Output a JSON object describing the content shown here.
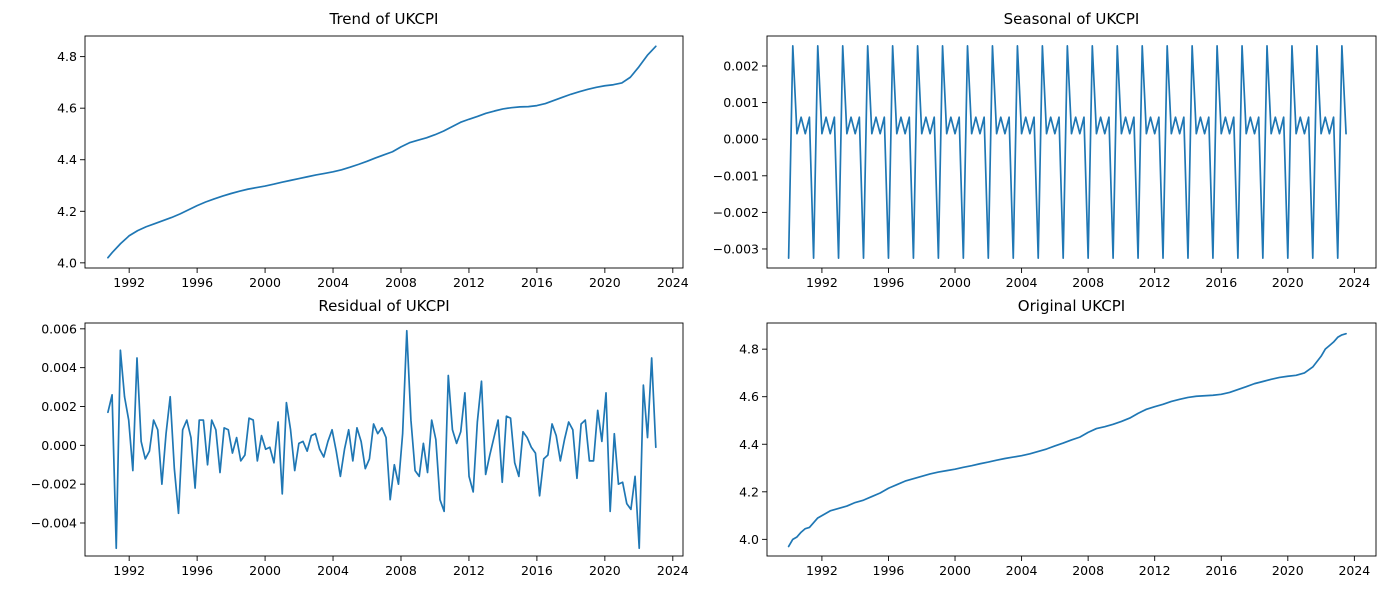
{
  "colors": {
    "line": "#1f77b4",
    "frame": "#000000",
    "background": "#ffffff"
  },
  "chart_data": [
    {
      "id": "trend",
      "type": "line",
      "title": "Trend of UKCPI",
      "xlabel": "",
      "ylabel": "",
      "xlim": [
        1989.4,
        2024.6
      ],
      "ylim": [
        3.98,
        4.88
      ],
      "xticks": [
        1992,
        1996,
        2000,
        2004,
        2008,
        2012,
        2016,
        2020,
        2024
      ],
      "yticks": [
        4.0,
        4.2,
        4.4,
        4.6,
        4.8
      ],
      "ytick_decimals": 1,
      "grid": false,
      "x": [
        1990.75,
        1991.0,
        1991.5,
        1992.0,
        1992.5,
        1993.0,
        1993.5,
        1994.0,
        1994.5,
        1995.0,
        1995.5,
        1996.0,
        1996.5,
        1997.0,
        1997.5,
        1998.0,
        1998.5,
        1999.0,
        1999.5,
        2000.0,
        2000.5,
        2001.0,
        2001.5,
        2002.0,
        2002.5,
        2003.0,
        2003.5,
        2004.0,
        2004.5,
        2005.0,
        2005.5,
        2006.0,
        2006.5,
        2007.0,
        2007.5,
        2008.0,
        2008.5,
        2009.0,
        2009.5,
        2010.0,
        2010.5,
        2011.0,
        2011.5,
        2012.0,
        2012.5,
        2013.0,
        2013.5,
        2014.0,
        2014.5,
        2015.0,
        2015.5,
        2016.0,
        2016.5,
        2017.0,
        2017.5,
        2018.0,
        2018.5,
        2019.0,
        2019.5,
        2020.0,
        2020.5,
        2021.0,
        2021.5,
        2022.0,
        2022.5,
        2023.0
      ],
      "y": [
        4.02,
        4.04,
        4.075,
        4.105,
        4.125,
        4.14,
        4.152,
        4.164,
        4.176,
        4.19,
        4.206,
        4.222,
        4.236,
        4.248,
        4.259,
        4.269,
        4.278,
        4.286,
        4.292,
        4.298,
        4.305,
        4.313,
        4.32,
        4.327,
        4.334,
        4.341,
        4.347,
        4.353,
        4.361,
        4.371,
        4.382,
        4.394,
        4.407,
        4.419,
        4.431,
        4.45,
        4.466,
        4.476,
        4.485,
        4.497,
        4.511,
        4.528,
        4.545,
        4.557,
        4.568,
        4.58,
        4.589,
        4.597,
        4.602,
        4.605,
        4.606,
        4.61,
        4.618,
        4.63,
        4.642,
        4.654,
        4.664,
        4.673,
        4.681,
        4.687,
        4.691,
        4.698,
        4.72,
        4.76,
        4.805,
        4.84
      ]
    },
    {
      "id": "seasonal",
      "type": "line",
      "title": "Seasonal of UKCPI",
      "xlabel": "",
      "ylabel": "",
      "xlim": [
        1988.7,
        2025.3
      ],
      "ylim": [
        -0.00352,
        0.00282
      ],
      "xticks": [
        1992,
        1996,
        2000,
        2004,
        2008,
        2012,
        2016,
        2020,
        2024
      ],
      "yticks": [
        -0.003,
        -0.002,
        -0.001,
        0.0,
        0.001,
        0.002
      ],
      "ytick_decimals": 3,
      "grid": false,
      "start_year": 1990.0,
      "end_year": 2023.5,
      "period_values": [
        -0.00325,
        0.00255,
        0.00015,
        0.0006,
        0.00015,
        0.0006
      ]
    },
    {
      "id": "residual",
      "type": "line",
      "title": "Residual of UKCPI",
      "xlabel": "",
      "ylabel": "",
      "xlim": [
        1989.4,
        2024.6
      ],
      "ylim": [
        -0.0057,
        0.0063
      ],
      "xticks": [
        1992,
        1996,
        2000,
        2004,
        2008,
        2012,
        2016,
        2020,
        2024
      ],
      "yticks": [
        -0.004,
        -0.002,
        0.0,
        0.002,
        0.004,
        0.006
      ],
      "ytick_decimals": 3,
      "grid": false,
      "start_year": 1990.75,
      "end_year": 2023.0,
      "y": [
        0.0017,
        0.0026,
        -0.0053,
        0.0049,
        0.0025,
        0.0013,
        -0.0013,
        0.0045,
        0.0002,
        -0.0007,
        -0.0003,
        0.0013,
        0.0008,
        -0.002,
        0.0006,
        0.0025,
        -0.0012,
        -0.0035,
        0.0008,
        0.0013,
        0.0004,
        -0.0022,
        0.0013,
        0.0013,
        -0.001,
        0.0013,
        0.0008,
        -0.0014,
        0.0009,
        0.0008,
        -0.0004,
        0.0004,
        -0.0008,
        -0.0005,
        0.0014,
        0.0013,
        -0.0008,
        0.0005,
        -0.0002,
        -0.0001,
        -0.0009,
        0.0012,
        -0.0025,
        0.0022,
        0.0008,
        -0.0013,
        0.0001,
        0.0002,
        -0.0003,
        0.0005,
        0.0006,
        -0.0002,
        -0.0006,
        0.0002,
        0.0008,
        -0.0003,
        -0.0016,
        -0.0002,
        0.0008,
        -0.0008,
        0.0009,
        0.0002,
        -0.0012,
        -0.0007,
        0.0011,
        0.0006,
        0.0009,
        0.0004,
        -0.0028,
        -0.001,
        -0.002,
        0.0006,
        0.0059,
        0.0013,
        -0.0013,
        -0.0016,
        0.0001,
        -0.0014,
        0.0013,
        0.0003,
        -0.0028,
        -0.0034,
        0.0036,
        0.0008,
        0.0001,
        0.0007,
        0.0027,
        -0.0016,
        -0.0024,
        0.0012,
        0.0033,
        -0.0015,
        -0.0005,
        0.0004,
        0.0013,
        -0.0019,
        0.0015,
        0.0014,
        -0.0009,
        -0.0016,
        0.0007,
        0.0004,
        -0.0001,
        -0.0004,
        -0.0026,
        -0.0007,
        -0.0005,
        0.0011,
        0.0005,
        -0.0008,
        0.0003,
        0.0012,
        0.0008,
        -0.0017,
        0.0011,
        0.0013,
        -0.0008,
        -0.0008,
        0.0018,
        0.0002,
        0.0027,
        -0.0034,
        0.0006,
        -0.002,
        -0.0019,
        -0.003,
        -0.0033,
        -0.0016,
        -0.0053,
        0.0031,
        0.0004,
        0.0045,
        -0.0001
      ]
    },
    {
      "id": "original",
      "type": "line",
      "title": "Original UKCPI",
      "xlabel": "",
      "ylabel": "",
      "xlim": [
        1988.7,
        2025.3
      ],
      "ylim": [
        3.93,
        4.91
      ],
      "xticks": [
        1992,
        1996,
        2000,
        2004,
        2008,
        2012,
        2016,
        2020,
        2024
      ],
      "yticks": [
        4.0,
        4.2,
        4.4,
        4.6,
        4.8
      ],
      "ytick_decimals": 1,
      "grid": false,
      "x": [
        1990.0,
        1990.25,
        1990.5,
        1990.75,
        1991.0,
        1991.25,
        1991.5,
        1991.75,
        1992.0,
        1992.5,
        1993.0,
        1993.5,
        1994.0,
        1994.5,
        1995.0,
        1995.5,
        1996.0,
        1996.5,
        1997.0,
        1997.5,
        1998.0,
        1998.5,
        1999.0,
        1999.5,
        2000.0,
        2000.5,
        2001.0,
        2001.5,
        2002.0,
        2002.5,
        2003.0,
        2003.5,
        2004.0,
        2004.5,
        2005.0,
        2005.5,
        2006.0,
        2006.5,
        2007.0,
        2007.5,
        2008.0,
        2008.5,
        2009.0,
        2009.5,
        2010.0,
        2010.5,
        2011.0,
        2011.5,
        2012.0,
        2012.5,
        2013.0,
        2013.5,
        2014.0,
        2014.5,
        2015.0,
        2015.5,
        2016.0,
        2016.5,
        2017.0,
        2017.5,
        2018.0,
        2018.5,
        2019.0,
        2019.5,
        2020.0,
        2020.5,
        2021.0,
        2021.5,
        2022.0,
        2022.25,
        2022.5,
        2022.75,
        2023.0,
        2023.25,
        2023.5
      ],
      "y": [
        3.97,
        4.0,
        4.01,
        4.03,
        4.045,
        4.05,
        4.07,
        4.09,
        4.1,
        4.12,
        4.13,
        4.14,
        4.155,
        4.165,
        4.18,
        4.195,
        4.215,
        4.23,
        4.245,
        4.255,
        4.265,
        4.275,
        4.283,
        4.289,
        4.295,
        4.303,
        4.31,
        4.318,
        4.325,
        4.333,
        4.34,
        4.346,
        4.352,
        4.36,
        4.37,
        4.38,
        4.393,
        4.405,
        4.418,
        4.43,
        4.45,
        4.466,
        4.474,
        4.484,
        4.496,
        4.51,
        4.53,
        4.547,
        4.558,
        4.568,
        4.58,
        4.589,
        4.597,
        4.602,
        4.604,
        4.606,
        4.61,
        4.618,
        4.63,
        4.642,
        4.655,
        4.664,
        4.673,
        4.681,
        4.686,
        4.69,
        4.7,
        4.725,
        4.77,
        4.8,
        4.815,
        4.83,
        4.85,
        4.86,
        4.865
      ]
    }
  ]
}
